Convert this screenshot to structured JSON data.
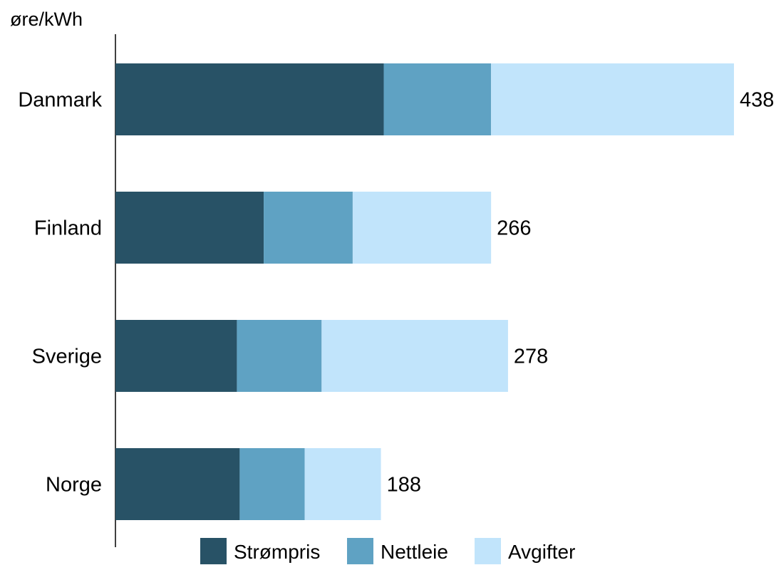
{
  "chart_data": {
    "type": "bar",
    "orientation": "horizontal",
    "stacked": true,
    "unit_label": "øre/kWh",
    "categories": [
      "Danmark",
      "Finland",
      "Sverige",
      "Norge"
    ],
    "series": [
      {
        "name": "Strømpris",
        "color": "#285266",
        "values": [
          190,
          105,
          86,
          88
        ]
      },
      {
        "name": "Nettleie",
        "color": "#5fa2c3",
        "values": [
          76,
          63,
          60,
          46
        ]
      },
      {
        "name": "Avgifter",
        "color": "#c1e4fb",
        "values": [
          172,
          98,
          132,
          54
        ]
      }
    ],
    "totals": [
      438,
      266,
      278,
      188
    ],
    "xlim": [
      0,
      438
    ],
    "grid": false,
    "legend_position": "bottom"
  }
}
